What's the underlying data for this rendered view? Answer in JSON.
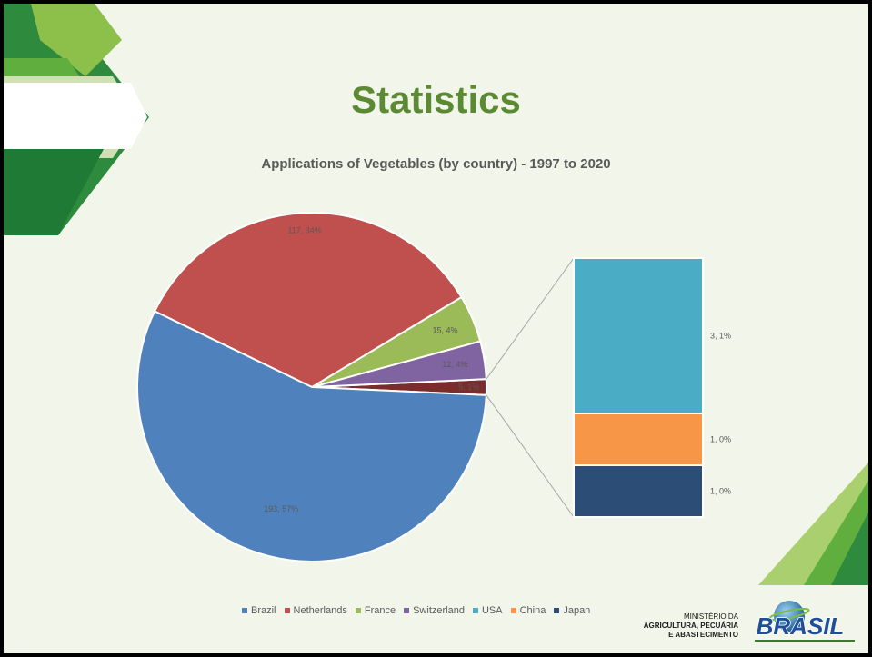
{
  "slide": {
    "title": "Statistics",
    "footer": {
      "ministry_line1": "MINISTÉRIO DA",
      "ministry_line2": "AGRICULTURA, PECUÁRIA",
      "ministry_line3": "E ABASTECIMENTO",
      "logo_text": "BRASIL"
    }
  },
  "chart_data": {
    "type": "pie",
    "title": "Applications of Vegetables (by country) - 1997 to 2020",
    "subtype": "bar-of-pie",
    "slices": [
      {
        "name": "Brazil",
        "value": 193,
        "label": "193, 57%",
        "color": "#4f81bd"
      },
      {
        "name": "Netherlands",
        "value": 117,
        "label": "117, 34%",
        "color": "#c0504d"
      },
      {
        "name": "France",
        "value": 15,
        "label": "15, 4%",
        "color": "#9bbb59"
      },
      {
        "name": "Switzerland",
        "value": 12,
        "label": "12, 4%",
        "color": "#8064a2"
      },
      {
        "name": "USA",
        "value": 3,
        "label": "3, 1%",
        "color": "#4bacc6"
      },
      {
        "name": "China",
        "value": 1,
        "label": "1, 0%",
        "color": "#f79646"
      },
      {
        "name": "Japan",
        "value": 1,
        "label": "1, 0%",
        "color": "#2c4d75"
      }
    ],
    "other_slice": {
      "value": 5,
      "label": "5, 1%",
      "color": "#7b2c2c"
    },
    "breakout_items": [
      "USA",
      "China",
      "Japan"
    ],
    "legend_position": "bottom",
    "legend": [
      "Brazil",
      "Netherlands",
      "France",
      "Switzerland",
      "USA",
      "China",
      "Japan"
    ]
  }
}
